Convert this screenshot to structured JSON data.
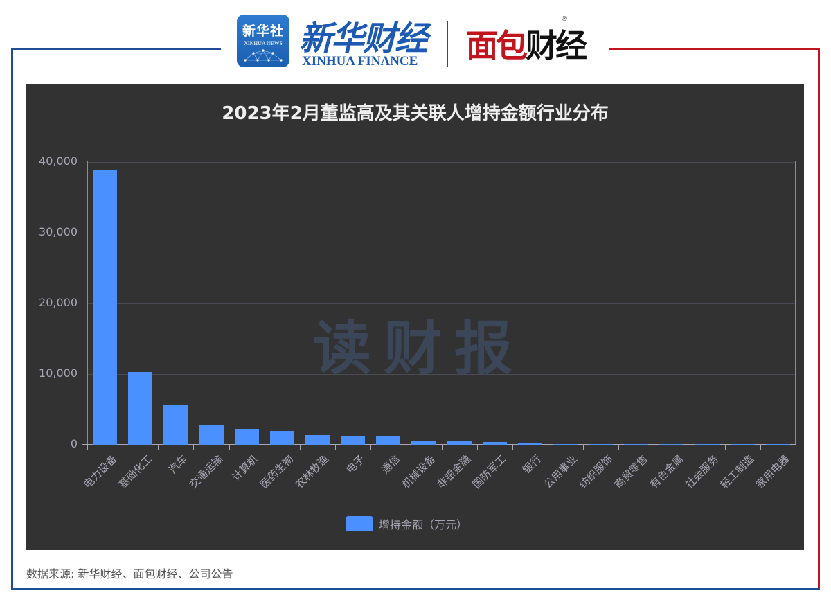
{
  "header": {
    "xinhua_badge_cn": "新华社",
    "xinhua_badge_en": "XINHUA NEWS",
    "xinhua_finance_cn_part1": "新华财",
    "xinhua_finance_cn_part2": "经",
    "xinhua_finance_en": "XINHUA FINANCE",
    "mianbao_red": "面包",
    "mianbao_black": "财经",
    "registered_mark": "®"
  },
  "colors": {
    "bar": "#4a90ff",
    "panel_bg": "#323232",
    "frame_blue": "#1f4e96",
    "frame_red": "#c0141f",
    "watermark": "#3b4658"
  },
  "watermark": "读财报",
  "source_note": "数据来源: 新华财经、面包财经、公司公告",
  "chart_data": {
    "type": "bar",
    "title": "2023年2月董监高及其关联人增持金额行业分布",
    "xlabel": "",
    "ylabel": "",
    "ylim": [
      0,
      40000
    ],
    "yticks": [
      "0",
      "10,000",
      "20,000",
      "30,000",
      "40,000"
    ],
    "grid": true,
    "legend_position": "bottom",
    "categories": [
      "电力设备",
      "基础化工",
      "汽车",
      "交通运输",
      "计算机",
      "医药生物",
      "农林牧渔",
      "电子",
      "通信",
      "机械设备",
      "非银金融",
      "国防军工",
      "银行",
      "公用事业",
      "纺织服饰",
      "商贸零售",
      "有色金属",
      "社会服务",
      "轻工制造",
      "家用电器"
    ],
    "series": [
      {
        "name": "增持金额（万元）",
        "values": [
          38800,
          10300,
          5700,
          2750,
          2300,
          2000,
          1350,
          1200,
          1200,
          600,
          600,
          400,
          200,
          100,
          100,
          50,
          30,
          30,
          20,
          10
        ]
      }
    ]
  }
}
